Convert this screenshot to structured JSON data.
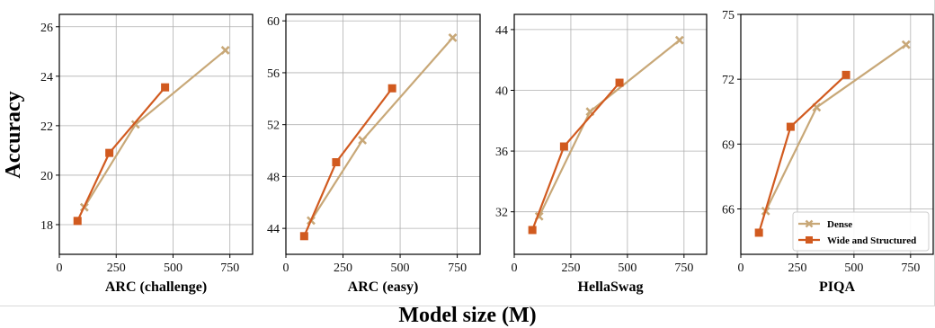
{
  "figure": {
    "ylabel": "Accuracy",
    "xlabel": "Model size (M)"
  },
  "chart_data": [
    {
      "type": "line",
      "xlabel": "ARC (challenge)",
      "xlim": [
        0,
        850
      ],
      "xticks": [
        0,
        250,
        500,
        750
      ],
      "ylim": [
        16.8,
        26.5
      ],
      "yticks": [
        18,
        20,
        22,
        24,
        26
      ],
      "series": [
        {
          "name": "Dense",
          "color": "#c8a878",
          "marker": "x",
          "x": [
            110,
            335,
            730
          ],
          "y": [
            18.7,
            22.05,
            25.05
          ]
        },
        {
          "name": "Wide and Structured",
          "color": "#d15a1f",
          "marker": "square",
          "x": [
            80,
            220,
            465
          ],
          "y": [
            18.15,
            20.9,
            23.55
          ]
        }
      ],
      "grid": true
    },
    {
      "type": "line",
      "xlabel": "ARC (easy)",
      "xlim": [
        0,
        850
      ],
      "xticks": [
        0,
        250,
        500,
        750
      ],
      "ylim": [
        42.0,
        60.5
      ],
      "yticks": [
        44,
        48,
        52,
        56,
        60
      ],
      "series": [
        {
          "name": "Dense",
          "color": "#c8a878",
          "marker": "x",
          "x": [
            110,
            335,
            730
          ],
          "y": [
            44.6,
            50.8,
            58.7
          ]
        },
        {
          "name": "Wide and Structured",
          "color": "#d15a1f",
          "marker": "square",
          "x": [
            80,
            220,
            465
          ],
          "y": [
            43.4,
            49.1,
            54.8
          ]
        }
      ],
      "grid": true
    },
    {
      "type": "line",
      "xlabel": "HellaSwag",
      "xlim": [
        0,
        850
      ],
      "xticks": [
        0,
        250,
        500,
        750
      ],
      "ylim": [
        29.2,
        45.0
      ],
      "yticks": [
        32,
        36,
        40,
        44
      ],
      "series": [
        {
          "name": "Dense",
          "color": "#c8a878",
          "marker": "x",
          "x": [
            110,
            335,
            730
          ],
          "y": [
            31.7,
            38.6,
            43.3
          ]
        },
        {
          "name": "Wide and Structured",
          "color": "#d15a1f",
          "marker": "square",
          "x": [
            80,
            220,
            465
          ],
          "y": [
            30.8,
            36.3,
            40.5
          ]
        }
      ],
      "grid": true
    },
    {
      "type": "line",
      "xlabel": "PIQA",
      "xlim": [
        0,
        850
      ],
      "xticks": [
        0,
        250,
        500,
        750
      ],
      "ylim": [
        63.9,
        75.0
      ],
      "yticks": [
        66,
        69,
        72,
        75
      ],
      "series": [
        {
          "name": "Dense",
          "color": "#c8a878",
          "marker": "x",
          "x": [
            110,
            335,
            730
          ],
          "y": [
            65.9,
            70.7,
            73.6
          ]
        },
        {
          "name": "Wide and Structured",
          "color": "#d15a1f",
          "marker": "square",
          "x": [
            80,
            220,
            465
          ],
          "y": [
            64.9,
            69.8,
            72.2
          ]
        }
      ],
      "grid": true,
      "legend": {
        "position": "bottom-right",
        "entries": [
          "Dense",
          "Wide and Structured"
        ]
      }
    }
  ]
}
